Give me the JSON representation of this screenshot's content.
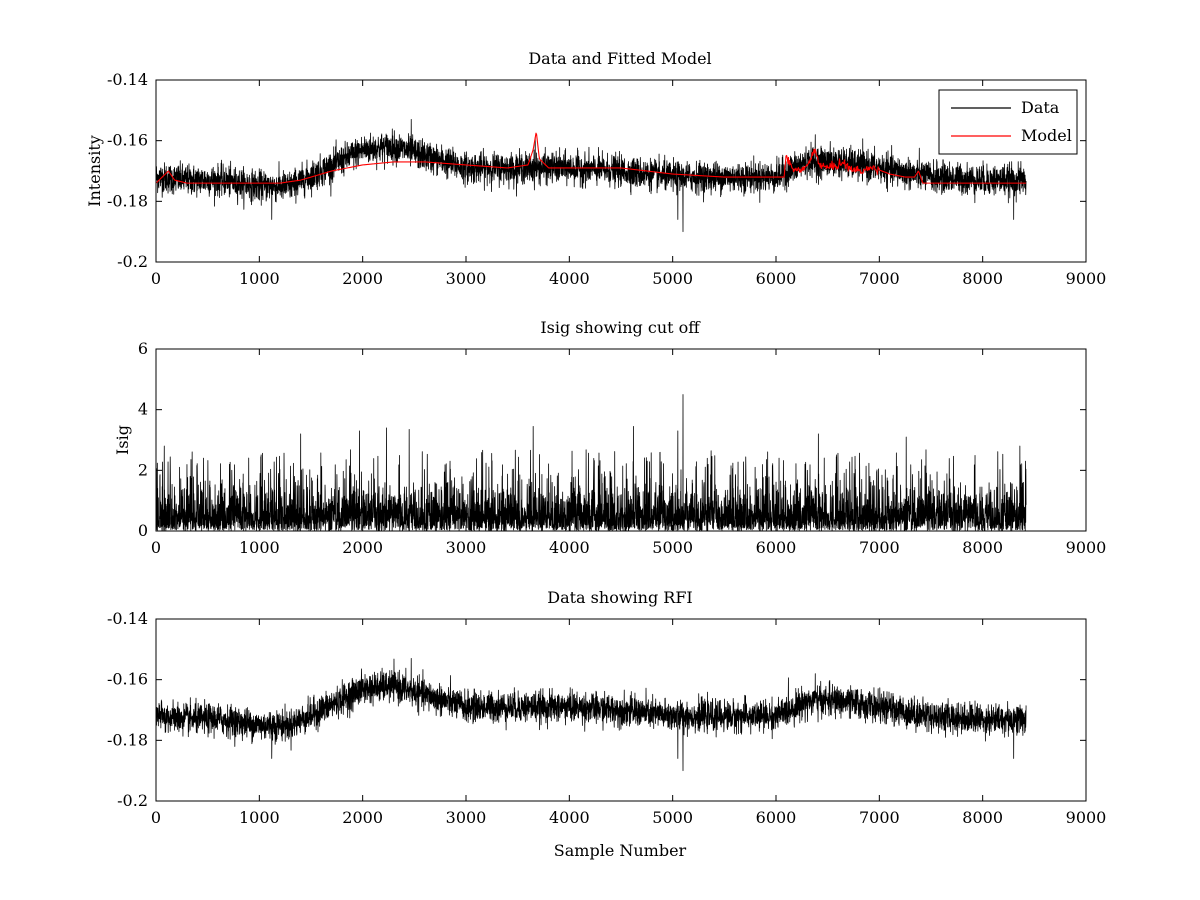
{
  "chart_data": [
    {
      "type": "line",
      "title": "Data and Fitted Model",
      "xlabel": "",
      "ylabel": "Intensity",
      "xlim": [
        0,
        9000
      ],
      "ylim": [
        -0.2,
        -0.14
      ],
      "xticks": [
        0,
        1000,
        2000,
        3000,
        4000,
        5000,
        6000,
        7000,
        8000,
        9000
      ],
      "yticks": [
        -0.2,
        -0.18,
        -0.16,
        -0.14
      ],
      "xtick_labels": [
        "0",
        "1000",
        "2000",
        "3000",
        "4000",
        "5000",
        "6000",
        "7000",
        "8000",
        "9000"
      ],
      "ytick_labels": [
        "-0.2",
        "-0.18",
        "-0.16",
        "-0.14"
      ],
      "legend": "top-right",
      "series": [
        {
          "name": "Data",
          "color": "#000000",
          "kind": "noisy",
          "x_range": [
            0,
            8420
          ],
          "baseline": {
            "x": [
              0,
              300,
              600,
              1000,
              1300,
              1600,
              2000,
              2300,
              2600,
              3000,
              3500,
              4000,
              4500,
              5000,
              5500,
              6000,
              6300,
              6600,
              7000,
              7500,
              8000,
              8420
            ],
            "y": [
              -0.172,
              -0.173,
              -0.173,
              -0.175,
              -0.175,
              -0.17,
              -0.163,
              -0.162,
              -0.165,
              -0.169,
              -0.169,
              -0.169,
              -0.17,
              -0.172,
              -0.172,
              -0.172,
              -0.167,
              -0.167,
              -0.169,
              -0.172,
              -0.173,
              -0.173
            ]
          },
          "noise_amplitude": 0.0045,
          "spikes": [
            {
              "x": 5100,
              "y": -0.19
            },
            {
              "x": 5050,
              "y": -0.186
            },
            {
              "x": 2470,
              "y": -0.153
            },
            {
              "x": 6380,
              "y": -0.158
            },
            {
              "x": 3670,
              "y": -0.159
            },
            {
              "x": 8300,
              "y": -0.186
            },
            {
              "x": 1120,
              "y": -0.186
            }
          ]
        },
        {
          "name": "Model",
          "color": "#ff0000",
          "kind": "smooth",
          "x": [
            0,
            60,
            120,
            180,
            300,
            600,
            1000,
            1200,
            1400,
            1700,
            2000,
            2300,
            2600,
            3000,
            3400,
            3600,
            3650,
            3680,
            3710,
            3800,
            4000,
            4500,
            5000,
            5500,
            6000,
            6080,
            6100,
            6150,
            6250,
            6330,
            6370,
            6420,
            6500,
            6600,
            6650,
            6700,
            6800,
            6950,
            7100,
            7250,
            7340,
            7380,
            7420,
            7500,
            8000,
            8420
          ],
          "y": [
            -0.174,
            -0.172,
            -0.17,
            -0.173,
            -0.174,
            -0.174,
            -0.174,
            -0.174,
            -0.173,
            -0.17,
            -0.168,
            -0.167,
            -0.167,
            -0.168,
            -0.169,
            -0.168,
            -0.163,
            -0.157,
            -0.166,
            -0.169,
            -0.169,
            -0.169,
            -0.171,
            -0.172,
            -0.172,
            -0.172,
            -0.165,
            -0.169,
            -0.17,
            -0.167,
            -0.162,
            -0.168,
            -0.169,
            -0.168,
            -0.167,
            -0.169,
            -0.17,
            -0.169,
            -0.171,
            -0.172,
            -0.172,
            -0.17,
            -0.174,
            -0.174,
            -0.174,
            -0.174
          ],
          "jitter_x_range": [
            6080,
            7000
          ],
          "jitter_amplitude": 0.0007
        }
      ]
    },
    {
      "type": "line",
      "title": "Isig showing cut off",
      "xlabel": "",
      "ylabel": "Isig",
      "xlim": [
        0,
        9000
      ],
      "ylim": [
        0,
        6
      ],
      "xticks": [
        0,
        1000,
        2000,
        3000,
        4000,
        5000,
        6000,
        7000,
        8000,
        9000
      ],
      "yticks": [
        0,
        2,
        4,
        6
      ],
      "xtick_labels": [
        "0",
        "1000",
        "2000",
        "3000",
        "4000",
        "5000",
        "6000",
        "7000",
        "8000",
        "9000"
      ],
      "ytick_labels": [
        "0",
        "2",
        "4",
        "6"
      ],
      "series": [
        {
          "name": "Isig",
          "color": "#000000",
          "kind": "abs-noise",
          "x_range": [
            0,
            8420
          ],
          "typical_max": 1.6,
          "peaks": [
            {
              "x": 5100,
              "y": 4.5
            },
            {
              "x": 3650,
              "y": 3.45
            },
            {
              "x": 4620,
              "y": 3.45
            },
            {
              "x": 5050,
              "y": 3.3
            },
            {
              "x": 2230,
              "y": 3.4
            },
            {
              "x": 2450,
              "y": 3.35
            },
            {
              "x": 1970,
              "y": 3.3
            },
            {
              "x": 1400,
              "y": 3.2
            },
            {
              "x": 80,
              "y": 2.8
            },
            {
              "x": 8360,
              "y": 2.8
            },
            {
              "x": 6410,
              "y": 3.2
            },
            {
              "x": 7260,
              "y": 3.1
            }
          ]
        }
      ]
    },
    {
      "type": "line",
      "title": "Data showing RFI",
      "xlabel": "Sample Number",
      "ylabel": "",
      "xlim": [
        0,
        9000
      ],
      "ylim": [
        -0.2,
        -0.14
      ],
      "xticks": [
        0,
        1000,
        2000,
        3000,
        4000,
        5000,
        6000,
        7000,
        8000,
        9000
      ],
      "yticks": [
        -0.2,
        -0.18,
        -0.16,
        -0.14
      ],
      "xtick_labels": [
        "0",
        "1000",
        "2000",
        "3000",
        "4000",
        "5000",
        "6000",
        "7000",
        "8000",
        "9000"
      ],
      "ytick_labels": [
        "-0.2",
        "-0.18",
        "-0.16",
        "-0.14"
      ],
      "series": [
        {
          "name": "Data",
          "color": "#000000",
          "kind": "noisy",
          "x_range": [
            0,
            8420
          ],
          "baseline": {
            "x": [
              0,
              300,
              600,
              1000,
              1300,
              1600,
              2000,
              2300,
              2600,
              3000,
              3500,
              4000,
              4500,
              5000,
              5500,
              6000,
              6300,
              6600,
              7000,
              7500,
              8000,
              8420
            ],
            "y": [
              -0.172,
              -0.173,
              -0.173,
              -0.175,
              -0.175,
              -0.17,
              -0.163,
              -0.162,
              -0.165,
              -0.169,
              -0.169,
              -0.169,
              -0.17,
              -0.172,
              -0.172,
              -0.172,
              -0.167,
              -0.167,
              -0.169,
              -0.172,
              -0.173,
              -0.173
            ]
          },
          "noise_amplitude": 0.0045,
          "spikes": [
            {
              "x": 5100,
              "y": -0.19
            },
            {
              "x": 5050,
              "y": -0.186
            },
            {
              "x": 2470,
              "y": -0.153
            },
            {
              "x": 6380,
              "y": -0.158
            },
            {
              "x": 8300,
              "y": -0.186
            },
            {
              "x": 1120,
              "y": -0.186
            }
          ]
        }
      ]
    }
  ]
}
